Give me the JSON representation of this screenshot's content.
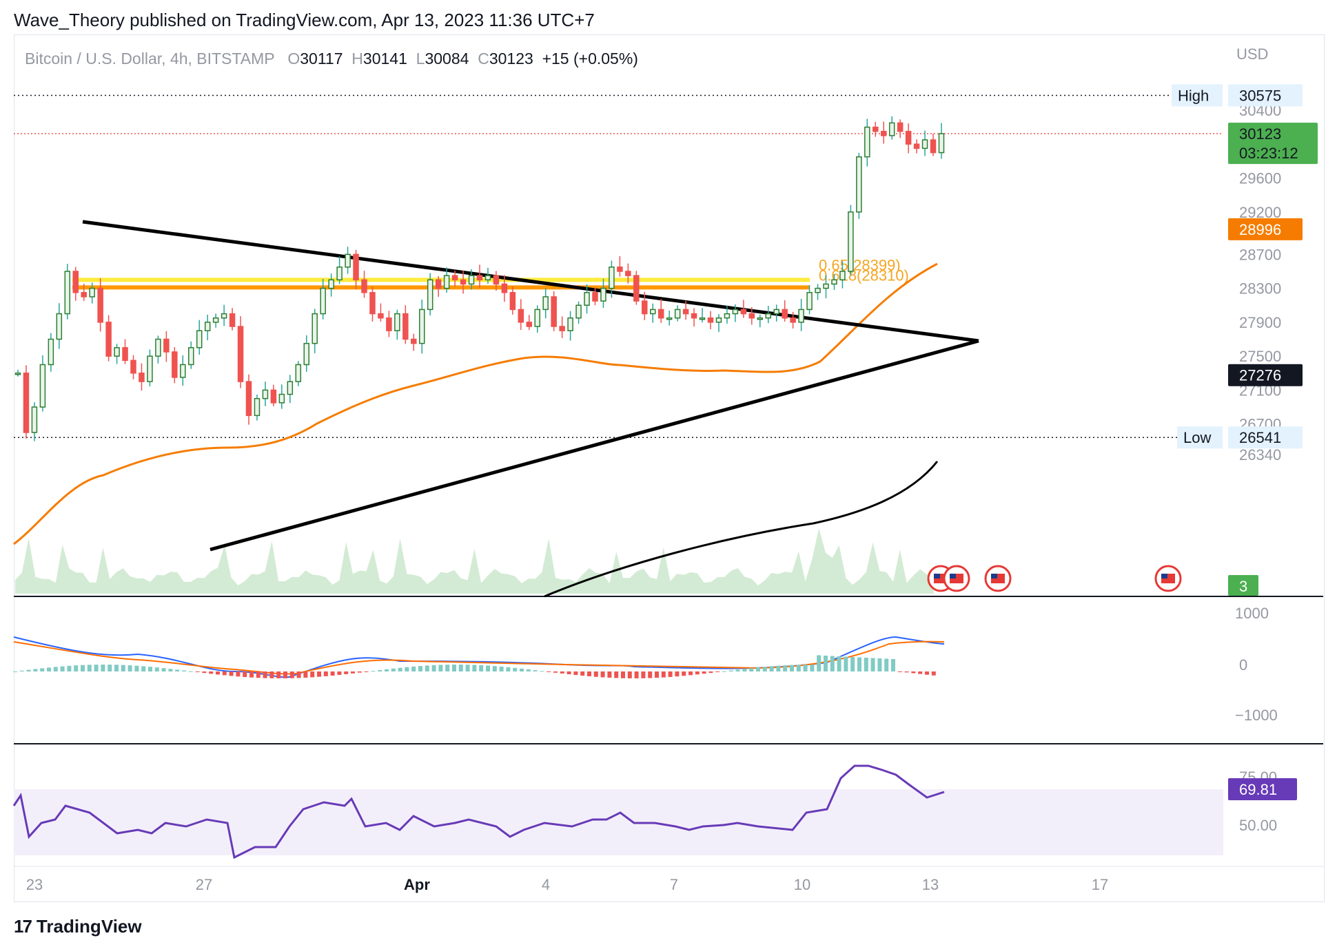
{
  "header": {
    "published": "Wave_Theory published on TradingView.com, Apr 13, 2023 11:36 UTC+7"
  },
  "legend": {
    "symbol": "Bitcoin / U.S. Dollar, 4h, BITSTAMP",
    "open_label": "O",
    "open": "30117",
    "high_label": "H",
    "high": "30141",
    "low_label": "L",
    "low": "30084",
    "close_label": "C",
    "close": "30123",
    "change": "+15 (+0.05%)"
  },
  "currency": "USD",
  "price_axis": {
    "ticks": [
      "30400",
      "29600",
      "29200",
      "28700",
      "28300",
      "27900",
      "27500",
      "27100",
      "26700",
      "26340"
    ],
    "tick_values": [
      30400,
      29600,
      29200,
      28700,
      28300,
      27900,
      27500,
      27100,
      26700,
      26340
    ]
  },
  "labels": {
    "high_label": "High",
    "high_value": "30575",
    "low_label": "Low",
    "low_value": "26541",
    "last_price": "30123",
    "countdown": "03:23:12",
    "ema_fast": "28996",
    "ema_slow": "27276",
    "volume_badge": "3",
    "fib_label_1": "0.65(28399)",
    "fib_label_2": "0.618(28310)"
  },
  "macd_axis": {
    "ticks": [
      "1000",
      "0",
      "−1000"
    ]
  },
  "rsi": {
    "value": "69.81",
    "ticks": [
      "75.00",
      "50.00"
    ]
  },
  "time_axis": {
    "labels": [
      "23",
      "27",
      "Apr",
      "4",
      "7",
      "10",
      "13",
      "17"
    ]
  },
  "footer": {
    "brand": "TradingView",
    "logo_text": "17"
  },
  "colors": {
    "bull": "#26a69a",
    "bear": "#ef5350",
    "bull_body": "#2e7d32",
    "ema_fast": "#f57c00",
    "ema_slow": "#000000",
    "yellow_zone": "#ffeb3b",
    "orange_zone": "#ff9800",
    "rsi": "#673ab7",
    "macd": "#2962ff",
    "signal": "#ff6d00"
  },
  "chart_data": {
    "type": "line",
    "title": "Bitcoin / U.S. Dollar, 4h, BITSTAMP",
    "x": [
      "Mar 23",
      "Mar 27",
      "Apr 1",
      "Apr 4",
      "Apr 7",
      "Apr 10",
      "Apr 13"
    ],
    "series": [
      {
        "name": "",
        "values": [
          27850,
          27400,
          28100,
          27950,
          27950,
          28200,
          30123
        ]
      }
    ],
    "ema_fast_last": 28996,
    "ema_slow_last": 27276,
    "high": 30575,
    "low": 26541,
    "fib_levels": [
      28399,
      28310
    ],
    "rsi_last": 69.81,
    "ylim": [
      26200,
      30700
    ]
  }
}
